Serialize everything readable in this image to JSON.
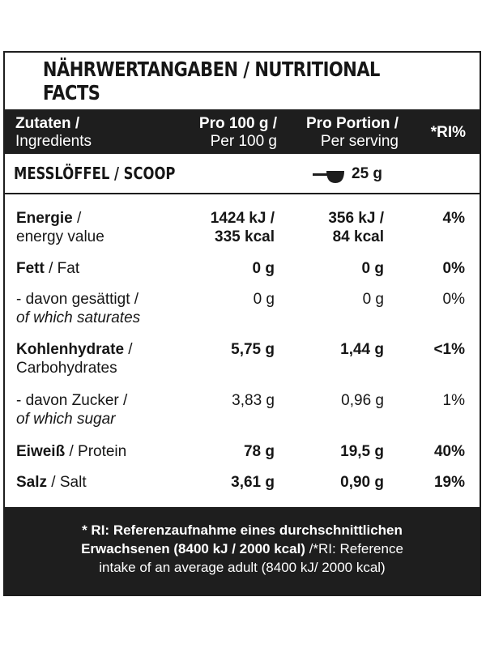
{
  "title": "NÄHRWERTANGABEN / NUTRITIONAL FACTS",
  "header": {
    "ingredients_bold": "Zutaten /",
    "ingredients_sub": "Ingredients",
    "per100_bold": "Pro 100 g /",
    "per100_sub": "Per 100 g",
    "portion_bold": "Pro Portion /",
    "portion_sub": "Per serving",
    "ri": "*RI%"
  },
  "scoop": {
    "label": "MESSLÖFFEL / SCOOP",
    "icon": "scoop-icon",
    "value": "25 g"
  },
  "rows": [
    {
      "name_bold": "Energie",
      "name_rest": " /",
      "name_line2": "energy value",
      "line2_italic": false,
      "per100": "1424 kJ /",
      "per100_l2": "335 kcal",
      "portion": "356 kJ /",
      "portion_l2": "84 kcal",
      "ri": "4%",
      "values_bold": true
    },
    {
      "name_bold": "Fett",
      "name_rest": " / Fat",
      "name_line2": "",
      "line2_italic": false,
      "per100": "0 g",
      "per100_l2": "",
      "portion": "0 g",
      "portion_l2": "",
      "ri": "0%",
      "values_bold": true
    },
    {
      "name_bold": "",
      "name_rest": "- davon gesättigt /",
      "name_line2": "of which saturates",
      "line2_italic": true,
      "per100": "0 g",
      "per100_l2": "",
      "portion": "0 g",
      "portion_l2": "",
      "ri": "0%",
      "values_bold": false
    },
    {
      "name_bold": "Kohlenhydrate",
      "name_rest": " /",
      "name_line2": "Carbohydrates",
      "line2_italic": false,
      "per100": "5,75 g",
      "per100_l2": "",
      "portion": "1,44  g",
      "portion_l2": "",
      "ri": "<1%",
      "values_bold": true
    },
    {
      "name_bold": "",
      "name_rest": "- davon Zucker /",
      "name_line2": "of which sugar",
      "line2_italic": true,
      "per100": "3,83 g",
      "per100_l2": "",
      "portion": "0,96 g",
      "portion_l2": "",
      "ri": "1%",
      "values_bold": false
    },
    {
      "name_bold": "Eiweiß",
      "name_rest": " / Protein",
      "name_line2": "",
      "line2_italic": false,
      "per100": "78 g",
      "per100_l2": "",
      "portion": "19,5 g",
      "portion_l2": "",
      "ri": "40%",
      "values_bold": true
    },
    {
      "name_bold": "Salz",
      "name_rest": " / Salt",
      "name_line2": "",
      "line2_italic": false,
      "per100": "3,61 g",
      "per100_l2": "",
      "portion": "0,90 g",
      "portion_l2": "",
      "ri": "19%",
      "values_bold": true
    }
  ],
  "footer": {
    "line1_bold": "* RI: Referenzaufnahme eines durchschnittlichen",
    "line2_bold": "Erwachsenen (8400 kJ / 2000 kcal)",
    "line2_rest": " /*RI: Reference",
    "line3": "intake of an average adult (8400 kJ/ 2000 kcal)"
  }
}
